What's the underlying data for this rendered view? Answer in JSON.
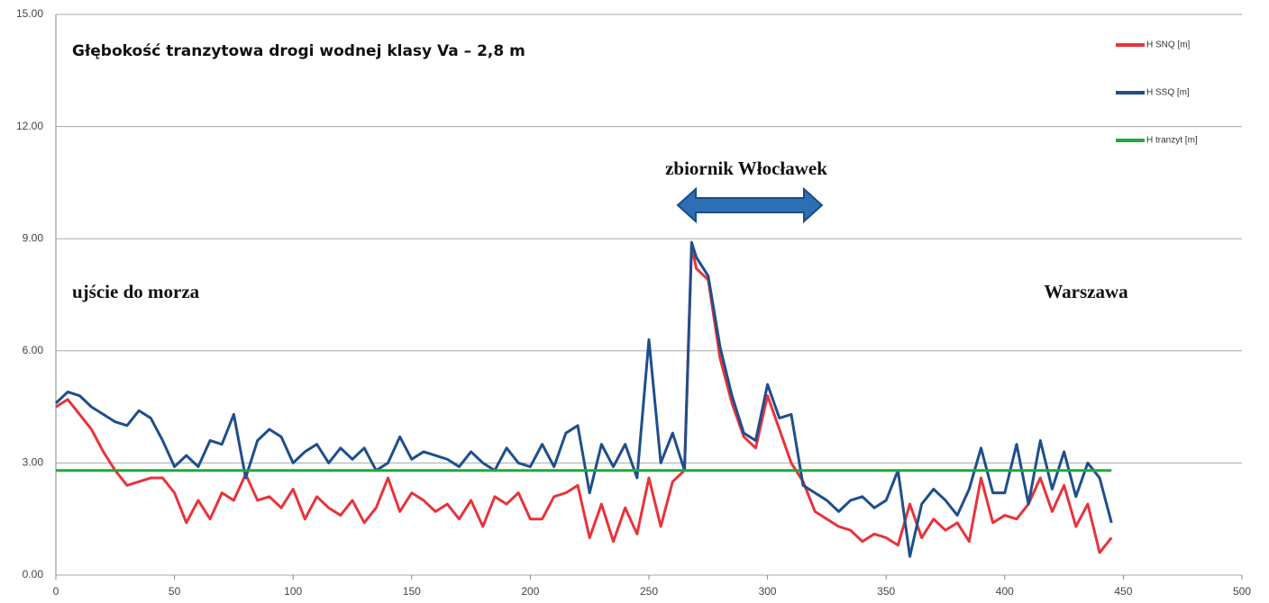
{
  "chart_data": {
    "type": "line",
    "title": "Głębokość tranzytowa drogi wodnej klasy Va – 2,8 m",
    "annotations": [
      "zbiornik Włocławek",
      "ujście do morza",
      "Warszawa"
    ],
    "xlim": [
      0,
      500
    ],
    "xticks": [
      0,
      50,
      100,
      150,
      200,
      250,
      300,
      350,
      400,
      450,
      500
    ],
    "ylim": [
      0,
      15
    ],
    "yticks": [
      {
        "value": 0,
        "label": "0.00"
      },
      {
        "value": 3,
        "label": "3.00"
      },
      {
        "value": 6,
        "label": "6.00"
      },
      {
        "value": 9,
        "label": "9.00"
      },
      {
        "value": 12,
        "label": "12.00"
      },
      {
        "value": 15,
        "label": "15.00"
      }
    ],
    "grid": true,
    "legend": "right",
    "x": [
      0,
      5,
      10,
      15,
      20,
      25,
      30,
      35,
      40,
      45,
      50,
      55,
      60,
      65,
      70,
      75,
      80,
      85,
      90,
      95,
      100,
      105,
      110,
      115,
      120,
      125,
      130,
      135,
      140,
      145,
      150,
      155,
      160,
      165,
      170,
      175,
      180,
      185,
      190,
      195,
      200,
      205,
      210,
      215,
      220,
      225,
      230,
      235,
      240,
      245,
      250,
      255,
      260,
      265,
      268,
      270,
      275,
      280,
      285,
      290,
      295,
      300,
      305,
      310,
      315,
      320,
      325,
      330,
      335,
      340,
      345,
      350,
      355,
      360,
      365,
      370,
      375,
      380,
      385,
      390,
      395,
      400,
      405,
      410,
      415,
      420,
      425,
      430,
      435,
      440,
      445
    ],
    "series": [
      {
        "name": "H SNQ [m]",
        "color": "#e8333a",
        "values": [
          4.5,
          4.7,
          4.3,
          3.9,
          3.3,
          2.8,
          2.4,
          2.5,
          2.6,
          2.6,
          2.2,
          1.4,
          2.0,
          1.5,
          2.2,
          2.0,
          2.7,
          2.0,
          2.1,
          1.8,
          2.3,
          1.5,
          2.1,
          1.8,
          1.6,
          2.0,
          1.4,
          1.8,
          2.6,
          1.7,
          2.2,
          2.0,
          1.7,
          1.9,
          1.5,
          2.0,
          1.3,
          2.1,
          1.9,
          2.2,
          1.5,
          1.5,
          2.1,
          2.2,
          2.4,
          1.0,
          1.9,
          0.9,
          1.8,
          1.1,
          2.6,
          1.3,
          2.5,
          2.8,
          8.8,
          8.2,
          7.9,
          5.8,
          4.6,
          3.7,
          3.4,
          4.8,
          3.9,
          3.0,
          2.5,
          1.7,
          1.5,
          1.3,
          1.2,
          0.9,
          1.1,
          1.0,
          0.8,
          1.9,
          1.0,
          1.5,
          1.2,
          1.4,
          0.9,
          2.6,
          1.4,
          1.6,
          1.5,
          1.9,
          2.6,
          1.7,
          2.4,
          1.3,
          1.9,
          0.6,
          1.0
        ]
      },
      {
        "name": "H SSQ [m]",
        "color": "#1f4e8c",
        "values": [
          4.6,
          4.9,
          4.8,
          4.5,
          4.3,
          4.1,
          4.0,
          4.4,
          4.2,
          3.6,
          2.9,
          3.2,
          2.9,
          3.6,
          3.5,
          4.3,
          2.6,
          3.6,
          3.9,
          3.7,
          3.0,
          3.3,
          3.5,
          3.0,
          3.4,
          3.1,
          3.4,
          2.8,
          3.0,
          3.7,
          3.1,
          3.3,
          3.2,
          3.1,
          2.9,
          3.3,
          3.0,
          2.8,
          3.4,
          3.0,
          2.9,
          3.5,
          2.9,
          3.8,
          4.0,
          2.2,
          3.5,
          2.9,
          3.5,
          2.6,
          6.3,
          3.0,
          3.8,
          2.8,
          8.9,
          8.5,
          8.0,
          6.1,
          4.8,
          3.8,
          3.6,
          5.1,
          4.2,
          4.3,
          2.4,
          2.2,
          2.0,
          1.7,
          2.0,
          2.1,
          1.8,
          2.0,
          2.8,
          0.5,
          1.9,
          2.3,
          2.0,
          1.6,
          2.3,
          3.4,
          2.2,
          2.2,
          3.5,
          1.9,
          3.6,
          2.3,
          3.3,
          2.1,
          3.0,
          2.6,
          1.4
        ]
      },
      {
        "name": "H tranzyt [m]",
        "color": "#1faa3c",
        "x": [
          0,
          445
        ],
        "values": [
          2.8,
          2.8
        ]
      }
    ]
  }
}
